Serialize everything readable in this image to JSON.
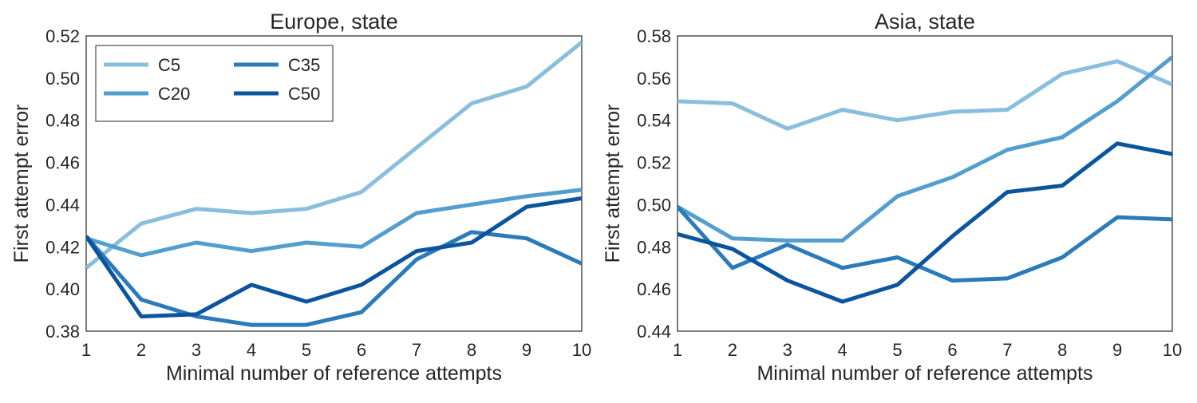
{
  "chart_data": [
    {
      "type": "line",
      "title": "Europe, state",
      "xlabel": "Minimal number of reference attempts",
      "ylabel": "First attempt error",
      "xlim": [
        1,
        10
      ],
      "ylim": [
        0.38,
        0.52
      ],
      "xticks": [
        1,
        2,
        3,
        4,
        5,
        6,
        7,
        8,
        9,
        10
      ],
      "xtick_labels": [
        "1",
        "2",
        "3",
        "4",
        "5",
        "6",
        "7",
        "8",
        "9",
        "10"
      ],
      "yticks": [
        0.38,
        0.4,
        0.42,
        0.44,
        0.46,
        0.48,
        0.5,
        0.52
      ],
      "ytick_labels": [
        "0.38",
        "0.40",
        "0.42",
        "0.44",
        "0.46",
        "0.48",
        "0.50",
        "0.52"
      ],
      "grid": false,
      "legend": "top-left",
      "x": [
        1,
        2,
        3,
        4,
        5,
        6,
        7,
        8,
        9,
        10
      ],
      "series": [
        {
          "name": "C5",
          "color": "#89bedc",
          "values": [
            0.41,
            0.431,
            0.438,
            0.436,
            0.438,
            0.446,
            0.467,
            0.488,
            0.496,
            0.517
          ]
        },
        {
          "name": "C20",
          "color": "#539ecd",
          "values": [
            0.424,
            0.416,
            0.422,
            0.418,
            0.422,
            0.42,
            0.436,
            0.44,
            0.444,
            0.447
          ]
        },
        {
          "name": "C35",
          "color": "#2b7bba",
          "values": [
            0.425,
            0.395,
            0.387,
            0.383,
            0.383,
            0.389,
            0.414,
            0.427,
            0.424,
            0.412
          ]
        },
        {
          "name": "C50",
          "color": "#0b559f",
          "values": [
            0.425,
            0.387,
            0.388,
            0.402,
            0.394,
            0.402,
            0.418,
            0.422,
            0.439,
            0.443
          ]
        }
      ]
    },
    {
      "type": "line",
      "title": "Asia, state",
      "xlabel": "Minimal number of reference attempts",
      "ylabel": "First attempt error",
      "xlim": [
        1,
        10
      ],
      "ylim": [
        0.44,
        0.58
      ],
      "xticks": [
        1,
        2,
        3,
        4,
        5,
        6,
        7,
        8,
        9,
        10
      ],
      "xtick_labels": [
        "1",
        "2",
        "3",
        "4",
        "5",
        "6",
        "7",
        "8",
        "9",
        "10"
      ],
      "yticks": [
        0.44,
        0.46,
        0.48,
        0.5,
        0.52,
        0.54,
        0.56,
        0.58
      ],
      "ytick_labels": [
        "0.44",
        "0.46",
        "0.48",
        "0.50",
        "0.52",
        "0.54",
        "0.56",
        "0.58"
      ],
      "grid": false,
      "x": [
        1,
        2,
        3,
        4,
        5,
        6,
        7,
        8,
        9,
        10
      ],
      "series": [
        {
          "name": "C5",
          "color": "#89bedc",
          "values": [
            0.549,
            0.548,
            0.536,
            0.545,
            0.54,
            0.544,
            0.545,
            0.562,
            0.568,
            0.557
          ]
        },
        {
          "name": "C20",
          "color": "#539ecd",
          "values": [
            0.499,
            0.484,
            0.483,
            0.483,
            0.504,
            0.513,
            0.526,
            0.532,
            0.549,
            0.57
          ]
        },
        {
          "name": "C35",
          "color": "#2b7bba",
          "values": [
            0.499,
            0.47,
            0.481,
            0.47,
            0.475,
            0.464,
            0.465,
            0.475,
            0.494,
            0.493
          ]
        },
        {
          "name": "C50",
          "color": "#0b559f",
          "values": [
            0.486,
            0.479,
            0.464,
            0.454,
            0.462,
            0.485,
            0.506,
            0.509,
            0.529,
            0.524
          ]
        }
      ]
    }
  ]
}
